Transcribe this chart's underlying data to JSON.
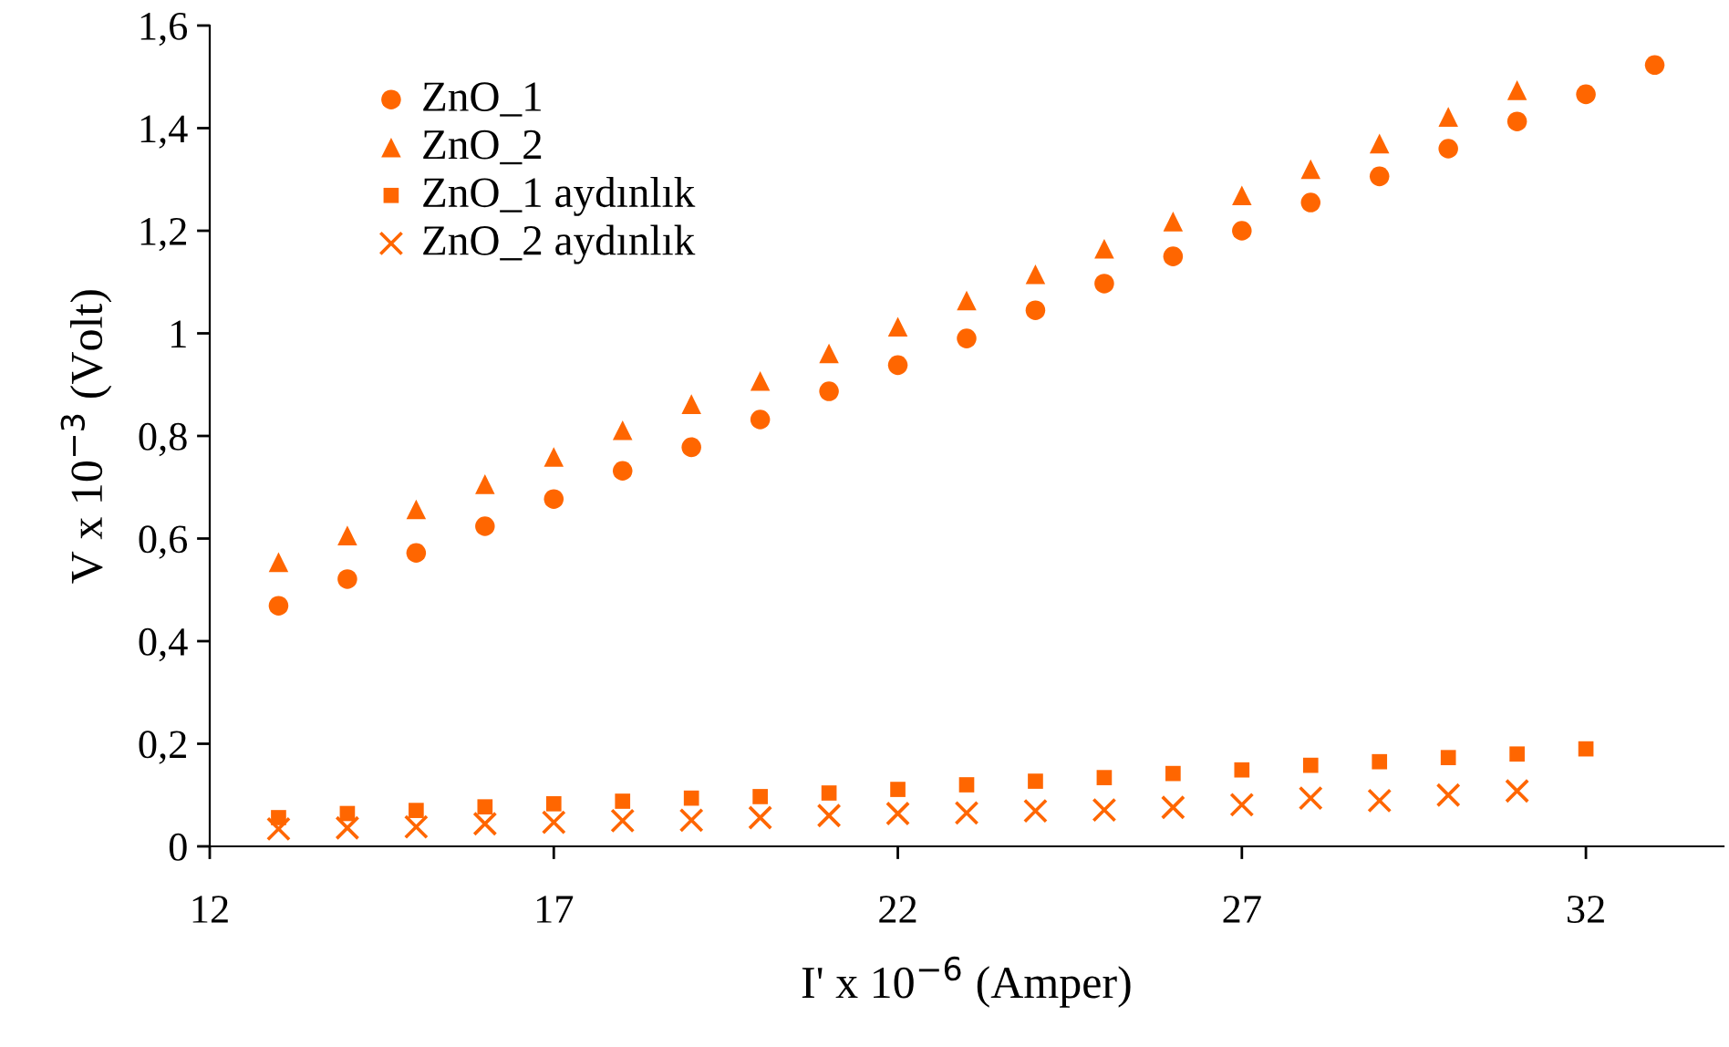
{
  "chart_data": {
    "type": "scatter",
    "xlabel": "I' x 10$^{−6}$ (Amper)",
    "ylabel": "V x 10$^{−3}$ (Volt)",
    "xlim": [
      12,
      34
    ],
    "xticks": [
      12,
      17,
      22,
      27,
      32
    ],
    "ylim": [
      0,
      1.6
    ],
    "yticks": [
      0,
      {
        "value": 0.2,
        "label": "0,2"
      },
      {
        "value": 0.4,
        "label": "0,4"
      },
      {
        "value": 0.6,
        "label": "0,6"
      },
      {
        "value": 0.8,
        "label": "0,8"
      },
      1,
      {
        "value": 1.2,
        "label": "1,2"
      },
      {
        "value": 1.4,
        "label": "1,4"
      },
      {
        "value": 1.6,
        "label": "1,6"
      }
    ],
    "grid": false,
    "legend": "top left",
    "series": [
      {
        "name": "ZnO_1",
        "color": "#ff6600",
        "marker": "circle",
        "x": [
          13,
          14,
          15,
          16,
          17,
          18,
          19,
          20,
          21,
          22,
          23,
          24,
          25,
          26,
          27,
          28,
          29,
          30,
          31,
          32,
          33
        ],
        "values": [
          0.469,
          0.521,
          0.572,
          0.624,
          0.677,
          0.732,
          0.778,
          0.832,
          0.887,
          0.938,
          0.99,
          1.045,
          1.097,
          1.15,
          1.2,
          1.255,
          1.306,
          1.36,
          1.413,
          1.466,
          1.523
        ]
      },
      {
        "name": "ZnO_2",
        "color": "#ff6600",
        "marker": "triangle",
        "x": [
          13,
          14,
          15,
          16,
          17,
          18,
          19,
          20,
          21,
          22,
          23,
          24,
          25,
          26,
          27,
          28,
          29,
          30,
          31
        ],
        "values": [
          0.554,
          0.606,
          0.657,
          0.706,
          0.759,
          0.811,
          0.862,
          0.907,
          0.961,
          1.013,
          1.064,
          1.115,
          1.165,
          1.218,
          1.269,
          1.32,
          1.37,
          1.422,
          1.474
        ]
      },
      {
        "name": "ZnO_1 aydınlık",
        "color": "#ff6600",
        "marker": "square",
        "x": [
          13,
          14,
          15,
          16,
          17,
          18,
          19,
          20,
          21,
          22,
          23,
          24,
          25,
          26,
          27,
          28,
          29,
          30,
          31,
          32
        ],
        "values": [
          0.056,
          0.064,
          0.07,
          0.077,
          0.083,
          0.088,
          0.094,
          0.097,
          0.104,
          0.111,
          0.12,
          0.127,
          0.134,
          0.142,
          0.149,
          0.158,
          0.165,
          0.173,
          0.18,
          0.19
        ]
      },
      {
        "name": "ZnO_2 aydınlık",
        "color": "#ff6600",
        "marker": "cross",
        "x": [
          13,
          14,
          15,
          16,
          17,
          18,
          19,
          20,
          21,
          22,
          23,
          24,
          25,
          26,
          27,
          28,
          29,
          30,
          31
        ],
        "values": [
          0.034,
          0.036,
          0.038,
          0.044,
          0.047,
          0.05,
          0.051,
          0.056,
          0.06,
          0.064,
          0.065,
          0.069,
          0.071,
          0.076,
          0.081,
          0.094,
          0.089,
          0.1,
          0.108
        ]
      }
    ]
  }
}
